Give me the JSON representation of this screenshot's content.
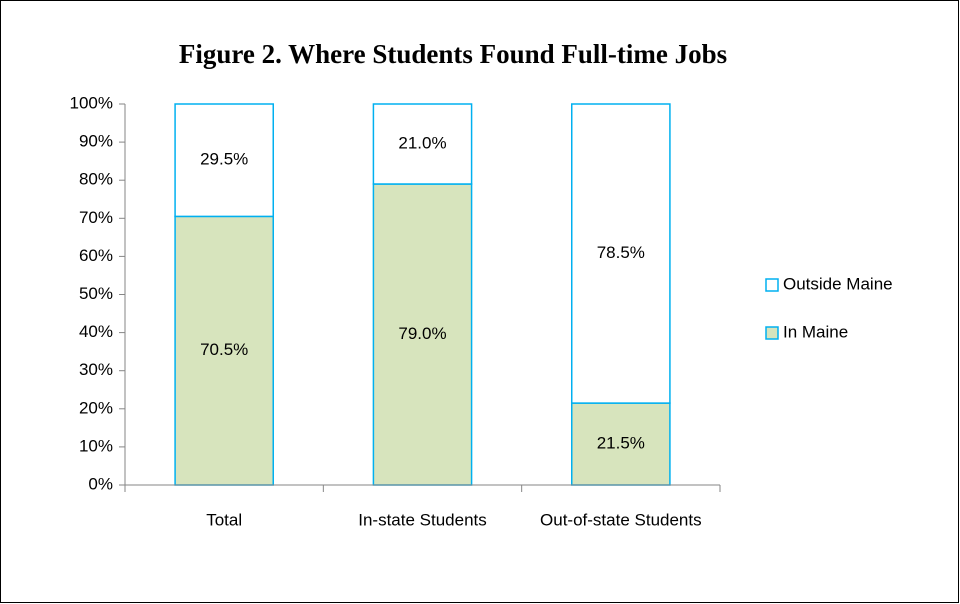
{
  "chart_data": {
    "type": "stacked_bar",
    "title": "Figure 2.  Where Students Found Full-time Jobs",
    "categories": [
      "Total",
      "In-state Students",
      "Out-of-state Students"
    ],
    "series": [
      {
        "name": "In Maine",
        "color": "#d7e4bd",
        "values": [
          70.5,
          79.0,
          21.5
        ],
        "value_labels": [
          "70.5%",
          "79.0%",
          "21.5%"
        ]
      },
      {
        "name": "Outside Maine",
        "color": "#ffffff",
        "values": [
          29.5,
          21.0,
          78.5
        ],
        "value_labels": [
          "29.5%",
          "21.0%",
          "78.5%"
        ]
      }
    ],
    "edge_color": "#00b0f0",
    "ylim": [
      0,
      100
    ],
    "yticks": [
      {
        "value": 0,
        "label": "0%"
      },
      {
        "value": 10,
        "label": "10%"
      },
      {
        "value": 20,
        "label": "20%"
      },
      {
        "value": 30,
        "label": "30%"
      },
      {
        "value": 40,
        "label": "40%"
      },
      {
        "value": 50,
        "label": "50%"
      },
      {
        "value": 60,
        "label": "60%"
      },
      {
        "value": 70,
        "label": "70%"
      },
      {
        "value": 80,
        "label": "80%"
      },
      {
        "value": 90,
        "label": "90%"
      },
      {
        "value": 100,
        "label": "100%"
      }
    ],
    "grid": false,
    "legend": "right"
  }
}
